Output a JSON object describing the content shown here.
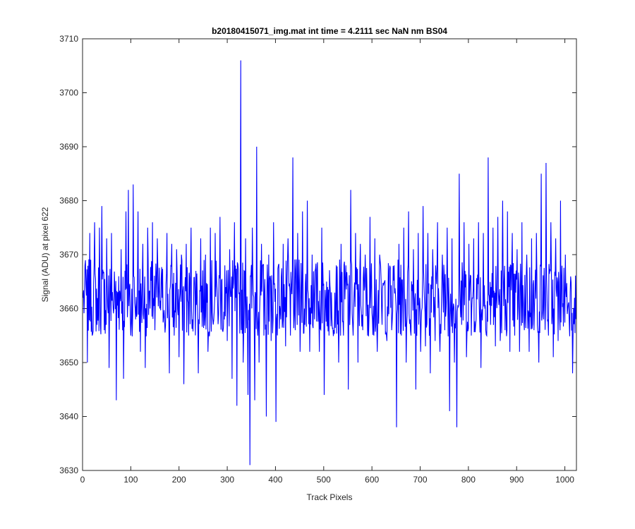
{
  "chart_data": {
    "type": "line",
    "title": "b20180415071_img.mat int time = 4.2111 sec  NaN nm BS04",
    "xlabel": "Track Pixels",
    "ylabel": "Signal (ADU) at pixel 622",
    "xlim": [
      0,
      1024
    ],
    "ylim": [
      3630,
      3710
    ],
    "xticks": [
      0,
      100,
      200,
      300,
      400,
      500,
      600,
      700,
      800,
      900,
      1000
    ],
    "yticks": [
      3630,
      3640,
      3650,
      3660,
      3670,
      3680,
      3690,
      3700,
      3710
    ],
    "grid": false,
    "legend": "none",
    "series": [
      {
        "color": "#0000ff",
        "x_start": 1,
        "x_end": 1024,
        "values_note_free": true,
        "mean": 3662,
        "std": 6.5,
        "samples": [
          [
            1,
            3662
          ],
          [
            5,
            3668
          ],
          [
            10,
            3650
          ],
          [
            15,
            3674
          ],
          [
            20,
            3655
          ],
          [
            25,
            3676
          ],
          [
            30,
            3657
          ],
          [
            35,
            3675
          ],
          [
            40,
            3679
          ],
          [
            45,
            3656
          ],
          [
            50,
            3673
          ],
          [
            55,
            3649
          ],
          [
            60,
            3674
          ],
          [
            65,
            3660
          ],
          [
            70,
            3643
          ],
          [
            75,
            3666
          ],
          [
            80,
            3671
          ],
          [
            85,
            3647
          ],
          [
            90,
            3678
          ],
          [
            95,
            3682
          ],
          [
            100,
            3655
          ],
          [
            105,
            3683
          ],
          [
            110,
            3658
          ],
          [
            115,
            3678
          ],
          [
            120,
            3652
          ],
          [
            125,
            3672
          ],
          [
            130,
            3649
          ],
          [
            135,
            3675
          ],
          [
            140,
            3660
          ],
          [
            145,
            3676
          ],
          [
            150,
            3656
          ],
          [
            155,
            3673
          ],
          [
            160,
            3660
          ],
          [
            165,
            3662
          ],
          [
            170,
            3658
          ],
          [
            175,
            3674
          ],
          [
            180,
            3648
          ],
          [
            185,
            3672
          ],
          [
            190,
            3655
          ],
          [
            195,
            3671
          ],
          [
            200,
            3651
          ],
          [
            205,
            3670
          ],
          [
            210,
            3646
          ],
          [
            215,
            3672
          ],
          [
            220,
            3655
          ],
          [
            225,
            3675
          ],
          [
            230,
            3660
          ],
          [
            235,
            3667
          ],
          [
            240,
            3648
          ],
          [
            245,
            3673
          ],
          [
            250,
            3660
          ],
          [
            255,
            3670
          ],
          [
            260,
            3652
          ],
          [
            265,
            3675
          ],
          [
            270,
            3658
          ],
          [
            275,
            3674
          ],
          [
            280,
            3661
          ],
          [
            285,
            3677
          ],
          [
            290,
            3656
          ],
          [
            295,
            3668
          ],
          [
            300,
            3654
          ],
          [
            305,
            3671
          ],
          [
            310,
            3647
          ],
          [
            315,
            3676
          ],
          [
            320,
            3642
          ],
          [
            325,
            3663
          ],
          [
            328,
            3706
          ],
          [
            333,
            3650
          ],
          [
            338,
            3673
          ],
          [
            343,
            3644
          ],
          [
            347,
            3631
          ],
          [
            352,
            3675
          ],
          [
            357,
            3643
          ],
          [
            361,
            3690
          ],
          [
            366,
            3650
          ],
          [
            371,
            3672
          ],
          [
            376,
            3655
          ],
          [
            381,
            3640
          ],
          [
            386,
            3670
          ],
          [
            391,
            3654
          ],
          [
            396,
            3676
          ],
          [
            401,
            3639
          ],
          [
            406,
            3668
          ],
          [
            411,
            3658
          ],
          [
            416,
            3672
          ],
          [
            421,
            3653
          ],
          [
            426,
            3673
          ],
          [
            431,
            3655
          ],
          [
            436,
            3688
          ],
          [
            441,
            3656
          ],
          [
            446,
            3674
          ],
          [
            451,
            3652
          ],
          [
            456,
            3678
          ],
          [
            461,
            3657
          ],
          [
            466,
            3680
          ],
          [
            471,
            3652
          ],
          [
            476,
            3670
          ],
          [
            481,
            3658
          ],
          [
            486,
            3667
          ],
          [
            491,
            3652
          ],
          [
            496,
            3675
          ],
          [
            501,
            3644
          ],
          [
            506,
            3665
          ],
          [
            511,
            3655
          ],
          [
            516,
            3663
          ],
          [
            521,
            3656
          ],
          [
            526,
            3668
          ],
          [
            531,
            3650
          ],
          [
            536,
            3672
          ],
          [
            541,
            3655
          ],
          [
            546,
            3668
          ],
          [
            551,
            3645
          ],
          [
            556,
            3682
          ],
          [
            561,
            3655
          ],
          [
            566,
            3674
          ],
          [
            571,
            3650
          ],
          [
            576,
            3672
          ],
          [
            581,
            3656
          ],
          [
            586,
            3670
          ],
          [
            591,
            3655
          ],
          [
            596,
            3677
          ],
          [
            601,
            3658
          ],
          [
            606,
            3673
          ],
          [
            611,
            3652
          ],
          [
            616,
            3670
          ],
          [
            621,
            3657
          ],
          [
            626,
            3665
          ],
          [
            631,
            3654
          ],
          [
            636,
            3667
          ],
          [
            641,
            3656
          ],
          [
            646,
            3668
          ],
          [
            651,
            3638
          ],
          [
            656,
            3672
          ],
          [
            661,
            3655
          ],
          [
            666,
            3675
          ],
          [
            671,
            3650
          ],
          [
            676,
            3678
          ],
          [
            681,
            3655
          ],
          [
            686,
            3671
          ],
          [
            691,
            3645
          ],
          [
            696,
            3674
          ],
          [
            701,
            3652
          ],
          [
            706,
            3679
          ],
          [
            711,
            3653
          ],
          [
            716,
            3674
          ],
          [
            721,
            3648
          ],
          [
            726,
            3671
          ],
          [
            731,
            3654
          ],
          [
            736,
            3676
          ],
          [
            741,
            3652
          ],
          [
            746,
            3670
          ],
          [
            751,
            3656
          ],
          [
            756,
            3675
          ],
          [
            761,
            3641
          ],
          [
            766,
            3673
          ],
          [
            771,
            3650
          ],
          [
            776,
            3638
          ],
          [
            781,
            3685
          ],
          [
            786,
            3657
          ],
          [
            791,
            3676
          ],
          [
            796,
            3651
          ],
          [
            801,
            3672
          ],
          [
            806,
            3655
          ],
          [
            811,
            3673
          ],
          [
            816,
            3658
          ],
          [
            821,
            3676
          ],
          [
            826,
            3649
          ],
          [
            831,
            3674
          ],
          [
            836,
            3656
          ],
          [
            841,
            3688
          ],
          [
            846,
            3657
          ],
          [
            851,
            3675
          ],
          [
            856,
            3653
          ],
          [
            861,
            3677
          ],
          [
            866,
            3654
          ],
          [
            871,
            3680
          ],
          [
            876,
            3656
          ],
          [
            881,
            3678
          ],
          [
            886,
            3652
          ],
          [
            891,
            3674
          ],
          [
            896,
            3655
          ],
          [
            901,
            3671
          ],
          [
            906,
            3652
          ],
          [
            911,
            3676
          ],
          [
            916,
            3656
          ],
          [
            921,
            3670
          ],
          [
            926,
            3652
          ],
          [
            931,
            3673
          ],
          [
            936,
            3656
          ],
          [
            941,
            3674
          ],
          [
            946,
            3650
          ],
          [
            951,
            3685
          ],
          [
            956,
            3658
          ],
          [
            961,
            3687
          ],
          [
            966,
            3655
          ],
          [
            971,
            3676
          ],
          [
            976,
            3651
          ],
          [
            981,
            3673
          ],
          [
            986,
            3654
          ],
          [
            991,
            3680
          ],
          [
            996,
            3661
          ],
          [
            1001,
            3670
          ],
          [
            1006,
            3660
          ],
          [
            1011,
            3663
          ],
          [
            1016,
            3648
          ],
          [
            1020,
            3662
          ],
          [
            1024,
            3660
          ]
        ]
      }
    ]
  }
}
